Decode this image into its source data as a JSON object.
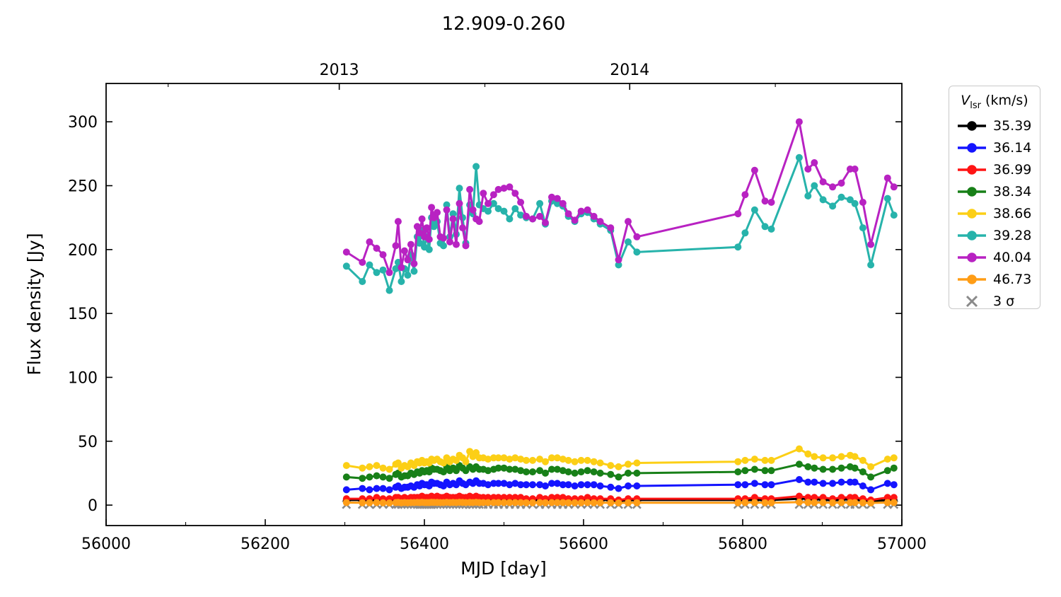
{
  "title": "12.909-0.260",
  "axes": {
    "xlabel": "MJD [day]",
    "ylabel": "Flux density [Jy]",
    "xlim": [
      56000,
      57000
    ],
    "ylim": [
      -16,
      330
    ],
    "x_major_ticks": [
      56000,
      56200,
      56400,
      56600,
      56800,
      57000
    ],
    "x_minor_ticks": [
      56100,
      56300,
      56500,
      56700,
      56900
    ],
    "y_major_ticks": [
      0,
      50,
      100,
      150,
      200,
      250,
      300
    ],
    "top_major_ticks": [
      {
        "label": "2013",
        "mjd": 56293
      },
      {
        "label": "2014",
        "mjd": 56658
      }
    ],
    "top_minor_ticks": [
      56078,
      56476,
      56841
    ]
  },
  "legend": {
    "title_v": "V",
    "title_sub": "lsr",
    "title_rest": " (km/s)"
  },
  "chart_data": {
    "type": "line",
    "x_mjd": [
      56302,
      56322,
      56331,
      56340,
      56348,
      56356,
      56364,
      56367,
      56371,
      56375,
      56379,
      56383,
      56387,
      56391,
      56394,
      56397,
      56400,
      56403,
      56406,
      56409,
      56412,
      56416,
      56420,
      56424,
      56428,
      56432,
      56436,
      56440,
      56444,
      56448,
      56452,
      56457,
      56461,
      56465,
      56469,
      56474,
      56480,
      56487,
      56493,
      56500,
      56507,
      56514,
      56521,
      56528,
      56536,
      56545,
      56552,
      56560,
      56567,
      56574,
      56581,
      56589,
      56597,
      56605,
      56613,
      56621,
      56634,
      56644,
      56656,
      56667,
      56794,
      56803,
      56815,
      56828,
      56836,
      56871,
      56882,
      56890,
      56901,
      56913,
      56924,
      56935,
      56941,
      56951,
      56961,
      56982,
      56990
    ],
    "series": [
      {
        "label": "35.39",
        "color": "#000000",
        "values": [
          4,
          4,
          4,
          4,
          4,
          4,
          4,
          5,
          4,
          4,
          4,
          4,
          4,
          5,
          4,
          5,
          4,
          4,
          4,
          5,
          5,
          5,
          4,
          4,
          5,
          4,
          5,
          4,
          5,
          5,
          4,
          5,
          4,
          5,
          4,
          4,
          4,
          4,
          4,
          4,
          4,
          4,
          4,
          4,
          4,
          4,
          4,
          4,
          4,
          4,
          4,
          4,
          4,
          4,
          4,
          4,
          4,
          3,
          4,
          4,
          4,
          4,
          4,
          4,
          4,
          5,
          5,
          5,
          4,
          4,
          4,
          5,
          4,
          4,
          3,
          4,
          4
        ]
      },
      {
        "label": "36.14",
        "color": "#1414ff",
        "values": [
          12,
          13,
          12,
          13,
          13,
          12,
          14,
          15,
          13,
          14,
          14,
          15,
          14,
          16,
          15,
          17,
          16,
          16,
          15,
          18,
          17,
          17,
          16,
          15,
          18,
          16,
          17,
          16,
          19,
          17,
          16,
          18,
          17,
          19,
          17,
          17,
          16,
          17,
          17,
          17,
          16,
          17,
          16,
          16,
          16,
          16,
          15,
          17,
          17,
          16,
          16,
          15,
          16,
          16,
          16,
          15,
          14,
          13,
          15,
          15,
          16,
          16,
          17,
          16,
          16,
          20,
          18,
          18,
          17,
          17,
          18,
          18,
          18,
          15,
          12,
          17,
          16
        ]
      },
      {
        "label": "36.99",
        "color": "#ff1414",
        "values": [
          5,
          5,
          5,
          6,
          5,
          5,
          6,
          6,
          5,
          6,
          5,
          6,
          6,
          6,
          6,
          7,
          6,
          6,
          6,
          7,
          6,
          7,
          6,
          6,
          7,
          6,
          6,
          6,
          7,
          6,
          6,
          7,
          6,
          7,
          6,
          6,
          6,
          6,
          6,
          6,
          6,
          6,
          6,
          5,
          5,
          6,
          5,
          6,
          6,
          6,
          5,
          5,
          5,
          6,
          5,
          5,
          5,
          4,
          5,
          5,
          5,
          5,
          6,
          5,
          5,
          7,
          6,
          6,
          6,
          5,
          6,
          6,
          6,
          5,
          4,
          6,
          6
        ]
      },
      {
        "label": "38.34",
        "color": "#188018",
        "values": [
          22,
          21,
          22,
          23,
          22,
          21,
          24,
          25,
          22,
          23,
          23,
          25,
          24,
          26,
          25,
          27,
          26,
          27,
          26,
          29,
          28,
          28,
          27,
          26,
          30,
          27,
          29,
          27,
          31,
          29,
          27,
          30,
          28,
          30,
          28,
          28,
          27,
          28,
          29,
          29,
          28,
          28,
          27,
          26,
          26,
          27,
          25,
          28,
          28,
          27,
          26,
          25,
          26,
          27,
          26,
          25,
          24,
          22,
          25,
          25,
          26,
          27,
          28,
          27,
          27,
          32,
          30,
          29,
          28,
          28,
          29,
          30,
          29,
          26,
          22,
          27,
          29
        ]
      },
      {
        "label": "38.66",
        "color": "#fccf16",
        "values": [
          31,
          29,
          30,
          31,
          29,
          28,
          32,
          33,
          29,
          31,
          30,
          33,
          31,
          34,
          33,
          35,
          33,
          34,
          33,
          36,
          35,
          36,
          34,
          33,
          37,
          34,
          36,
          35,
          39,
          37,
          34,
          42,
          38,
          41,
          37,
          37,
          36,
          37,
          37,
          37,
          36,
          37,
          36,
          35,
          35,
          36,
          34,
          37,
          37,
          36,
          35,
          34,
          35,
          35,
          34,
          33,
          31,
          30,
          32,
          33,
          34,
          35,
          36,
          35,
          35,
          44,
          40,
          38,
          37,
          37,
          38,
          39,
          38,
          35,
          30,
          36,
          37
        ]
      },
      {
        "label": "39.28",
        "color": "#27b3ab",
        "values": [
          187,
          175,
          188,
          182,
          184,
          168,
          185,
          190,
          175,
          185,
          180,
          196,
          183,
          210,
          205,
          215,
          202,
          210,
          200,
          225,
          218,
          222,
          205,
          203,
          235,
          210,
          228,
          212,
          248,
          225,
          205,
          235,
          228,
          265,
          235,
          232,
          230,
          236,
          232,
          230,
          224,
          232,
          227,
          225,
          224,
          236,
          220,
          238,
          236,
          234,
          226,
          222,
          228,
          229,
          224,
          220,
          215,
          188,
          206,
          198,
          202,
          213,
          231,
          218,
          216,
          272,
          242,
          250,
          239,
          234,
          241,
          239,
          236,
          217,
          188,
          240,
          227
        ]
      },
      {
        "label": "40.04",
        "color": "#b822c2",
        "values": [
          198,
          190,
          206,
          201,
          196,
          182,
          203,
          222,
          186,
          199,
          192,
          204,
          189,
          218,
          213,
          224,
          210,
          217,
          208,
          233,
          225,
          229,
          210,
          209,
          231,
          206,
          224,
          204,
          236,
          217,
          203,
          247,
          231,
          224,
          222,
          244,
          236,
          243,
          247,
          248,
          249,
          244,
          237,
          226,
          224,
          226,
          221,
          241,
          240,
          236,
          228,
          223,
          230,
          231,
          226,
          222,
          217,
          192,
          222,
          210,
          228,
          243,
          262,
          238,
          237,
          300,
          263,
          268,
          253,
          249,
          252,
          263,
          263,
          237,
          204,
          256,
          249
        ]
      },
      {
        "label": "46.73",
        "color": "#ff9d16",
        "values": [
          2,
          1.8,
          1.9,
          2,
          1.8,
          1.7,
          2,
          2.1,
          1.8,
          2,
          1.9,
          2,
          2,
          2.1,
          2,
          2.2,
          2,
          2,
          2,
          2.2,
          2.1,
          2.1,
          2,
          2,
          2.2,
          2,
          2.1,
          2,
          2.2,
          2.1,
          2,
          2.1,
          2,
          2.2,
          2,
          2,
          2,
          2,
          2,
          2,
          2,
          2,
          2,
          1.9,
          1.9,
          2,
          1.9,
          2,
          2,
          2,
          1.9,
          1.9,
          1.9,
          2,
          1.9,
          1.9,
          1.8,
          1.7,
          1.9,
          1.9,
          1.9,
          2,
          2,
          1.9,
          1.9,
          2.3,
          2.1,
          2,
          2,
          1.9,
          2,
          2,
          2,
          1.9,
          1.7,
          2,
          2
        ]
      },
      {
        "label": "3 σ",
        "color": "#8a8a8a",
        "marker": "x",
        "flat_value": 0.5
      }
    ]
  }
}
